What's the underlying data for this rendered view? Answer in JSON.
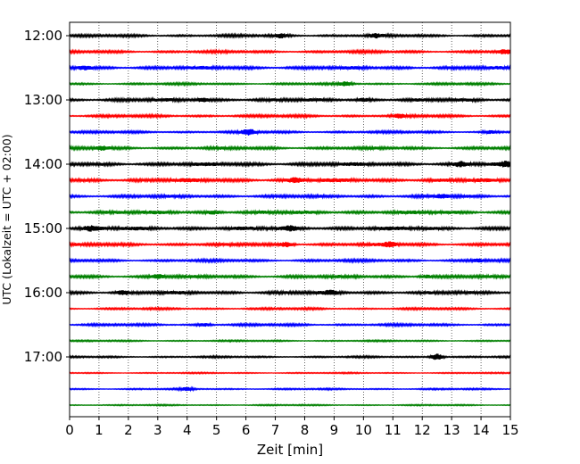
{
  "chart_data": {
    "type": "line",
    "xlabel": "Zeit  [min]",
    "ylabel": "UTC (Lokalzeit = UTC + 02:00)",
    "xlim": [
      0,
      15
    ],
    "x_ticks": [
      "0",
      "1",
      "2",
      "3",
      "4",
      "5",
      "6",
      "7",
      "8",
      "9",
      "10",
      "11",
      "12",
      "13",
      "14",
      "15"
    ],
    "y_ticks": [
      "12:00",
      "13:00",
      "14:00",
      "15:00",
      "16:00",
      "17:00"
    ],
    "grid": "vertical dotted",
    "trace_interval_min": 15,
    "colors": [
      "#000000",
      "#ff0000",
      "#0000ff",
      "#008000"
    ],
    "series": [
      {
        "start": "12:00",
        "amplitude": 1.0,
        "events": [
          {
            "t": 7.2,
            "a": 1.8
          },
          {
            "t": 10.4,
            "a": 1.6
          }
        ]
      },
      {
        "start": "12:15",
        "amplitude": 1.0,
        "events": [
          {
            "t": 14.8,
            "a": 2.0
          }
        ]
      },
      {
        "start": "12:30",
        "amplitude": 1.3,
        "events": [
          {
            "t": 0.5,
            "a": 1.5
          }
        ]
      },
      {
        "start": "12:45",
        "amplitude": 0.8,
        "events": [
          {
            "t": 9.4,
            "a": 2.0
          }
        ]
      },
      {
        "start": "13:00",
        "amplitude": 1.3,
        "events": [
          {
            "t": 4.5,
            "a": 1.8
          },
          {
            "t": 10.0,
            "a": 1.3
          }
        ]
      },
      {
        "start": "13:15",
        "amplitude": 1.0,
        "events": [
          {
            "t": 11.2,
            "a": 1.4
          }
        ]
      },
      {
        "start": "13:30",
        "amplitude": 0.9,
        "events": [
          {
            "t": 6.1,
            "a": 3.0
          },
          {
            "t": 14.3,
            "a": 1.3
          }
        ]
      },
      {
        "start": "13:45",
        "amplitude": 1.1,
        "events": [
          {
            "t": 1.1,
            "a": 1.8
          }
        ]
      },
      {
        "start": "14:00",
        "amplitude": 1.4,
        "events": [
          {
            "t": 13.3,
            "a": 2.0
          },
          {
            "t": 14.9,
            "a": 2.2
          }
        ]
      },
      {
        "start": "14:15",
        "amplitude": 1.5,
        "events": [
          {
            "t": 7.7,
            "a": 1.8
          }
        ]
      },
      {
        "start": "14:30",
        "amplitude": 1.2,
        "events": [
          {
            "t": 12.7,
            "a": 1.8
          }
        ]
      },
      {
        "start": "14:45",
        "amplitude": 1.4,
        "events": [
          {
            "t": 4.9,
            "a": 1.6
          }
        ]
      },
      {
        "start": "15:00",
        "amplitude": 1.5,
        "events": [
          {
            "t": 0.7,
            "a": 1.6
          },
          {
            "t": 7.5,
            "a": 1.6
          }
        ]
      },
      {
        "start": "15:15",
        "amplitude": 1.2,
        "events": [
          {
            "t": 7.4,
            "a": 2.2
          },
          {
            "t": 10.9,
            "a": 2.2
          }
        ]
      },
      {
        "start": "15:30",
        "amplitude": 1.0,
        "events": [
          {
            "t": 13.9,
            "a": 1.5
          }
        ]
      },
      {
        "start": "15:45",
        "amplitude": 1.2,
        "events": [
          {
            "t": 3.0,
            "a": 2.0
          },
          {
            "t": 12.1,
            "a": 1.6
          }
        ]
      },
      {
        "start": "16:00",
        "amplitude": 1.3,
        "events": [
          {
            "t": 1.8,
            "a": 1.7
          },
          {
            "t": 8.9,
            "a": 1.7
          }
        ]
      },
      {
        "start": "16:15",
        "amplitude": 0.8,
        "events": []
      },
      {
        "start": "16:30",
        "amplitude": 0.9,
        "events": [
          {
            "t": 4.6,
            "a": 1.5
          }
        ]
      },
      {
        "start": "16:45",
        "amplitude": 0.6,
        "events": []
      },
      {
        "start": "17:00",
        "amplitude": 0.7,
        "events": [
          {
            "t": 12.5,
            "a": 3.5
          }
        ]
      },
      {
        "start": "17:15",
        "amplitude": 0.5,
        "events": []
      },
      {
        "start": "17:30",
        "amplitude": 0.6,
        "events": [
          {
            "t": 4.0,
            "a": 1.4
          }
        ]
      },
      {
        "start": "17:45",
        "amplitude": 0.5,
        "events": []
      }
    ]
  }
}
